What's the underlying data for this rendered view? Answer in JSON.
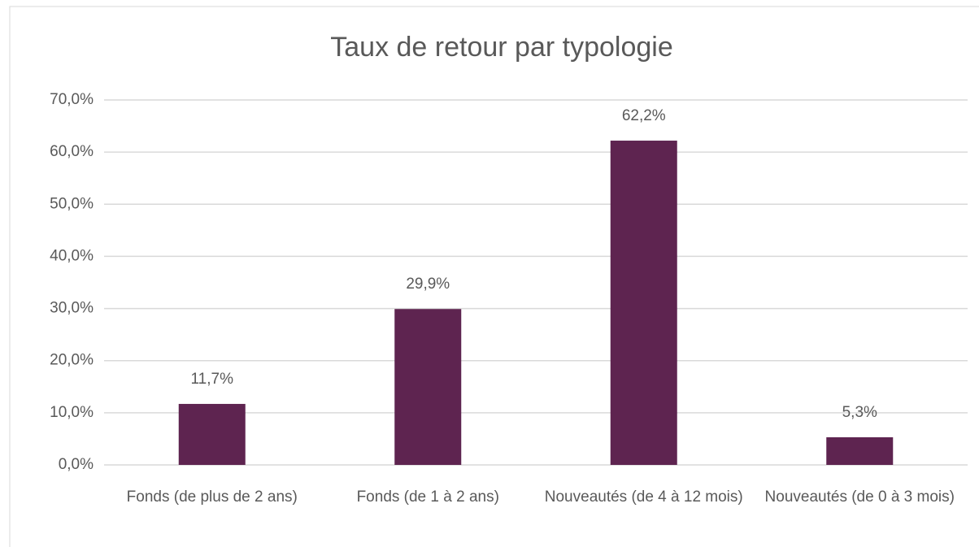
{
  "chart_data": {
    "type": "bar",
    "title": "Taux de retour par typologie",
    "categories": [
      "Fonds (de plus de 2 ans)",
      "Fonds (de 1 à 2 ans)",
      "Nouveautés (de 4 à 12 mois)",
      "Nouveautés (de 0 à 3 mois)"
    ],
    "values": [
      11.7,
      29.9,
      62.2,
      5.3
    ],
    "value_labels": [
      "11,7%",
      "29,9%",
      "62,2%",
      "5,3%"
    ],
    "color": "#5e2450",
    "ylim": [
      0,
      70
    ],
    "yticks": [
      {
        "value": 0,
        "label": "0,0%"
      },
      {
        "value": 10,
        "label": "10,0%"
      },
      {
        "value": 20,
        "label": "20,0%"
      },
      {
        "value": 30,
        "label": "30,0%"
      },
      {
        "value": 40,
        "label": "40,0%"
      },
      {
        "value": 50,
        "label": "50,0%"
      },
      {
        "value": 60,
        "label": "60,0%"
      },
      {
        "value": 70,
        "label": "70,0%"
      }
    ],
    "grid": true
  }
}
